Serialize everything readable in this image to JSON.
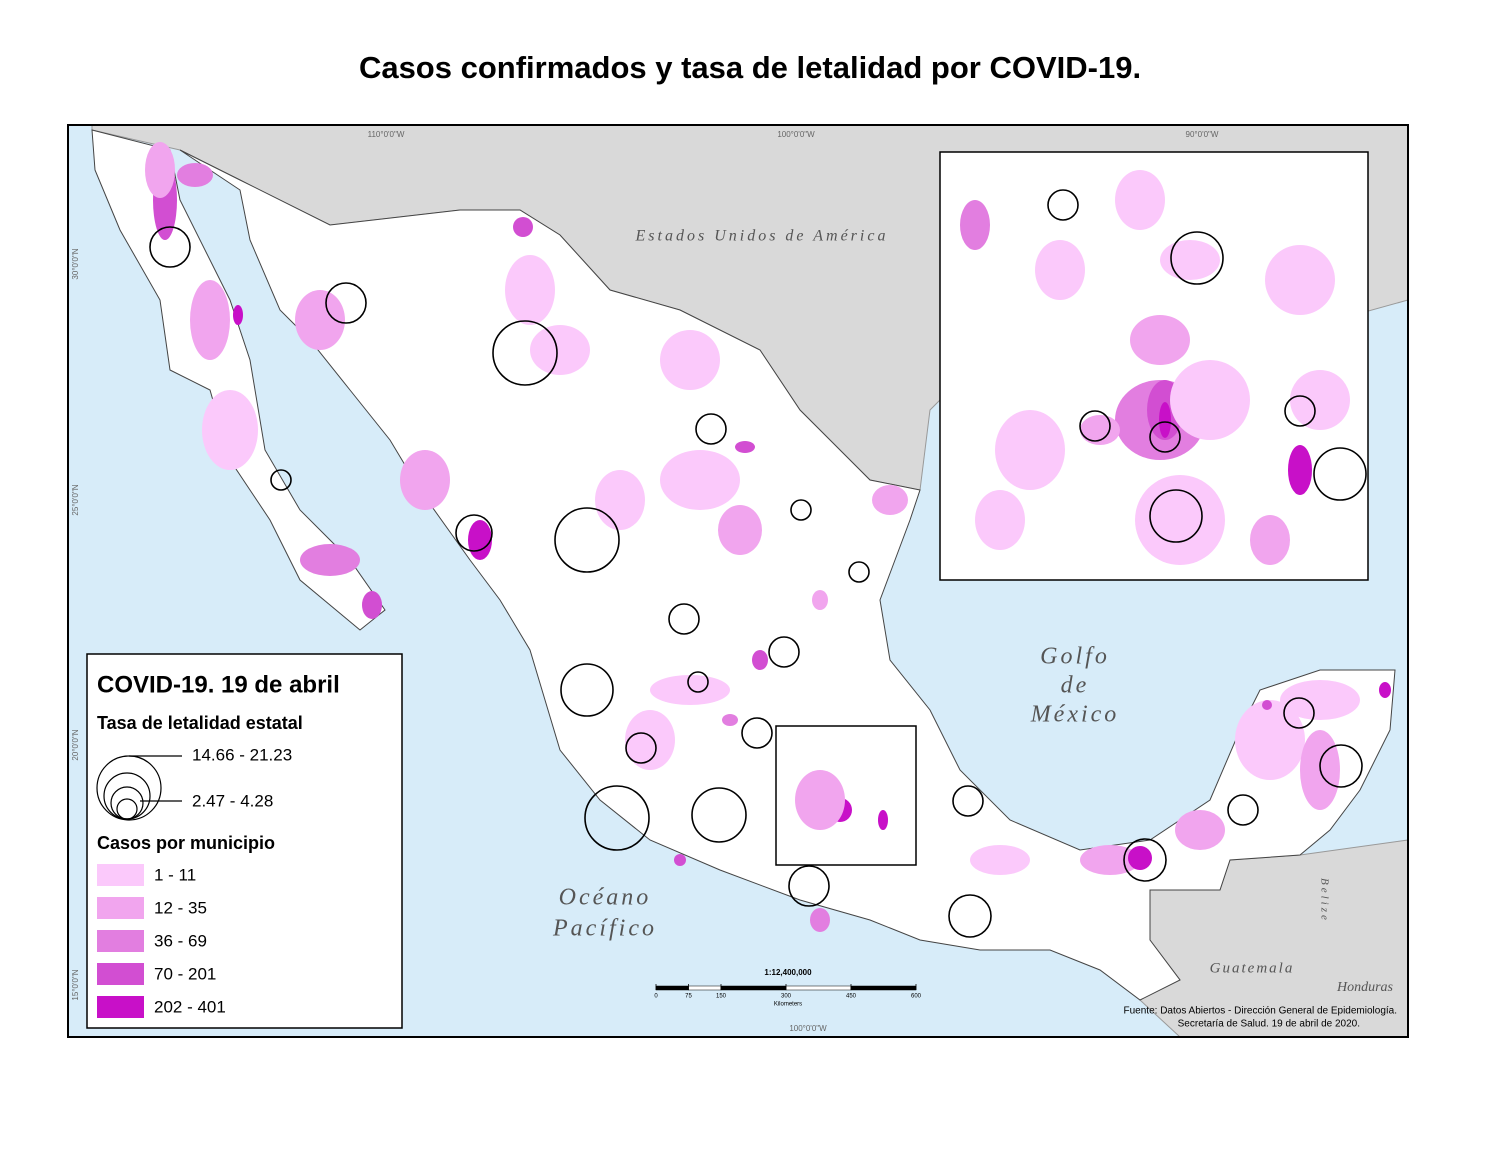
{
  "title": "Casos confirmados y tasa de letalidad por COVID-19.",
  "map": {
    "labels": {
      "usa": "Estados Unidos de América",
      "gulf": [
        "Golfo",
        "de",
        "México"
      ],
      "pacific": [
        "Océano",
        "Pacífico"
      ],
      "guatemala": "Guatemala",
      "honduras": "Honduras",
      "belize": "Belize"
    },
    "graticule": {
      "top": [
        "110°0'0\"W",
        "100°0'0\"W",
        "90°0'0\"W"
      ],
      "left": [
        "30°0'0\"N",
        "25°0'0\"N",
        "20°0'0\"N",
        "15°0'0\"N"
      ],
      "bottom": "100°0'0\"W"
    }
  },
  "scale_bar": {
    "ratio": "1:12,400,000",
    "ticks": [
      0,
      75,
      150,
      300,
      450,
      600
    ],
    "unit": "Kilometers"
  },
  "source": [
    "Fuente: Datos Abiertos - Dirección General de Epidemiología.",
    "Secretaría de Salud. 19 de abril de 2020."
  ],
  "legend": {
    "title": "COVID-19. 19 de abril",
    "rate_title": "Tasa de letalidad estatal",
    "rate_classes": [
      "14.66 - 21.23",
      "2.47 - 4.28"
    ],
    "cases_title": "Casos por municipio",
    "cases_classes": [
      {
        "label": "1 - 11",
        "color": "#fbc9fb"
      },
      {
        "label": "12 - 35",
        "color": "#f1a5ee"
      },
      {
        "label": "36 - 69",
        "color": "#e27ee0"
      },
      {
        "label": "70 - 201",
        "color": "#d24ed2"
      },
      {
        "label": "202 - 401",
        "color": "#c810c8"
      }
    ]
  }
}
